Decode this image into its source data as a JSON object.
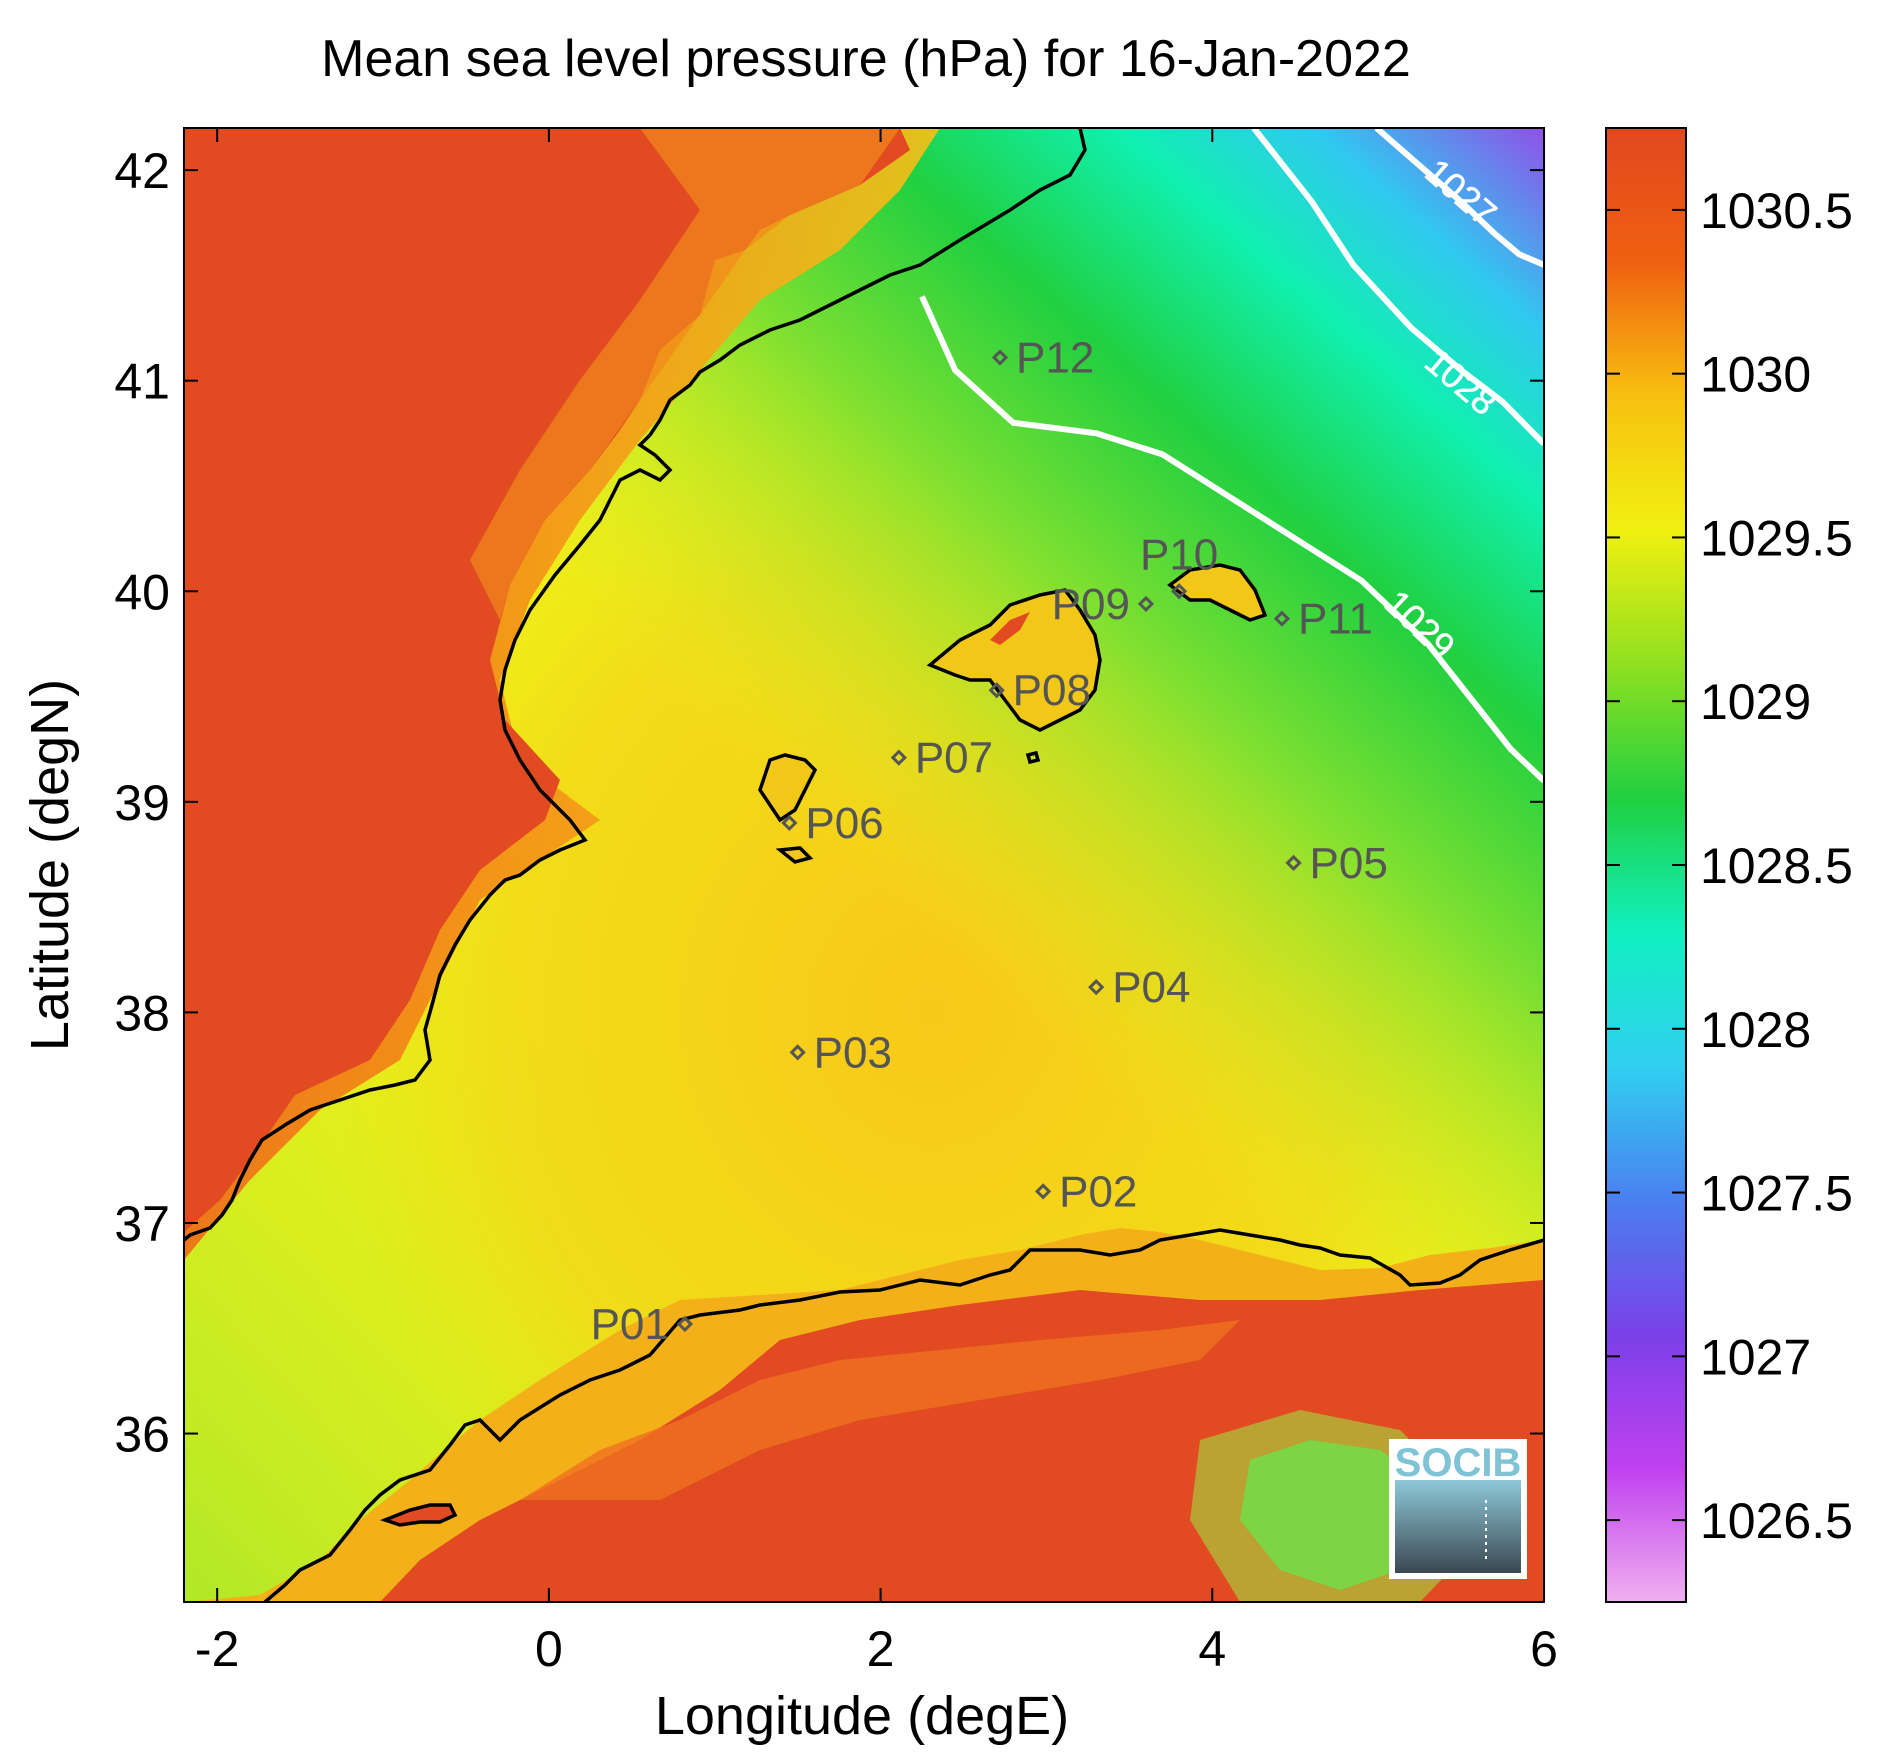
{
  "title": "Mean sea level pressure (hPa) for 16-Jan-2022",
  "axes": {
    "xlabel": "Longitude (degE)",
    "ylabel": "Latitude (degN)",
    "xlim": [
      -2.2,
      6.0
    ],
    "ylim": [
      35.2,
      42.2
    ],
    "xticks": [
      {
        "value": -2,
        "label": "-2"
      },
      {
        "value": 0,
        "label": "0"
      },
      {
        "value": 2,
        "label": "2"
      },
      {
        "value": 4,
        "label": "4"
      },
      {
        "value": 6,
        "label": "6"
      }
    ],
    "yticks": [
      {
        "value": 36,
        "label": "36"
      },
      {
        "value": 37,
        "label": "37"
      },
      {
        "value": 38,
        "label": "38"
      },
      {
        "value": 39,
        "label": "39"
      },
      {
        "value": 40,
        "label": "40"
      },
      {
        "value": 41,
        "label": "41"
      },
      {
        "value": 42,
        "label": "42"
      }
    ]
  },
  "colorbar": {
    "range": [
      1026.25,
      1030.75
    ],
    "ticks": [
      {
        "value": 1026.5,
        "label": "1026.5"
      },
      {
        "value": 1027,
        "label": "1027"
      },
      {
        "value": 1027.5,
        "label": "1027.5"
      },
      {
        "value": 1028,
        "label": "1028"
      },
      {
        "value": 1028.5,
        "label": "1028.5"
      },
      {
        "value": 1029,
        "label": "1029"
      },
      {
        "value": 1029.5,
        "label": "1029.5"
      },
      {
        "value": 1030,
        "label": "1030"
      },
      {
        "value": 1030.5,
        "label": "1030.5"
      }
    ],
    "colors": [
      "#f0b0f0",
      "#c040f0",
      "#7a40e8",
      "#4a80f0",
      "#30d0f0",
      "#10f0c0",
      "#20d040",
      "#90e020",
      "#f0f010",
      "#f8c010",
      "#f06010",
      "#e04820"
    ]
  },
  "colors": {
    "land": "#e24a22",
    "coast": "#000000",
    "contour": "#ffffff",
    "station": "#555555"
  },
  "contours": [
    {
      "label": "1027",
      "label_pos": [
        5.45,
        41.85
      ],
      "points": [
        [
          4.99,
          42.2
        ],
        [
          5.5,
          41.85
        ],
        [
          5.7,
          41.7
        ],
        [
          5.85,
          41.6
        ],
        [
          6.0,
          41.55
        ]
      ]
    },
    {
      "label": "1028",
      "label_pos": [
        5.45,
        40.95
      ],
      "points": [
        [
          4.25,
          42.2
        ],
        [
          4.6,
          41.85
        ],
        [
          4.85,
          41.55
        ],
        [
          5.2,
          41.25
        ],
        [
          5.5,
          41.05
        ],
        [
          5.75,
          40.9
        ],
        [
          6.0,
          40.7
        ]
      ]
    },
    {
      "label": "1029",
      "label_pos": [
        5.2,
        39.8
      ],
      "points": [
        [
          2.25,
          41.4
        ],
        [
          2.45,
          41.05
        ],
        [
          2.8,
          40.8
        ],
        [
          3.3,
          40.75
        ],
        [
          3.7,
          40.65
        ],
        [
          4.1,
          40.45
        ],
        [
          4.5,
          40.25
        ],
        [
          4.9,
          40.05
        ],
        [
          5.3,
          39.75
        ],
        [
          5.6,
          39.45
        ],
        [
          5.8,
          39.25
        ],
        [
          6.0,
          39.1
        ]
      ]
    }
  ],
  "stations": [
    {
      "id": "P01",
      "lon": 0.82,
      "lat": 36.52,
      "label_side": "left"
    },
    {
      "id": "P02",
      "lon": 2.98,
      "lat": 37.15,
      "label_side": "right"
    },
    {
      "id": "P03",
      "lon": 1.5,
      "lat": 37.81,
      "label_side": "right"
    },
    {
      "id": "P04",
      "lon": 3.3,
      "lat": 38.12,
      "label_side": "right"
    },
    {
      "id": "P05",
      "lon": 4.49,
      "lat": 38.71,
      "label_side": "right"
    },
    {
      "id": "P06",
      "lon": 1.45,
      "lat": 38.9,
      "label_side": "right"
    },
    {
      "id": "P07",
      "lon": 2.11,
      "lat": 39.21,
      "label_side": "right"
    },
    {
      "id": "P08",
      "lon": 2.7,
      "lat": 39.53,
      "label_side": "right"
    },
    {
      "id": "P09",
      "lon": 3.6,
      "lat": 39.94,
      "label_side": "left"
    },
    {
      "id": "P10",
      "lon": 3.8,
      "lat": 40.0,
      "label_side": "above"
    },
    {
      "id": "P11",
      "lon": 4.42,
      "lat": 39.87,
      "label_side": "right"
    },
    {
      "id": "P12",
      "lon": 2.72,
      "lat": 41.11,
      "label_side": "right"
    }
  ],
  "logo": {
    "text": "SOCIB"
  }
}
